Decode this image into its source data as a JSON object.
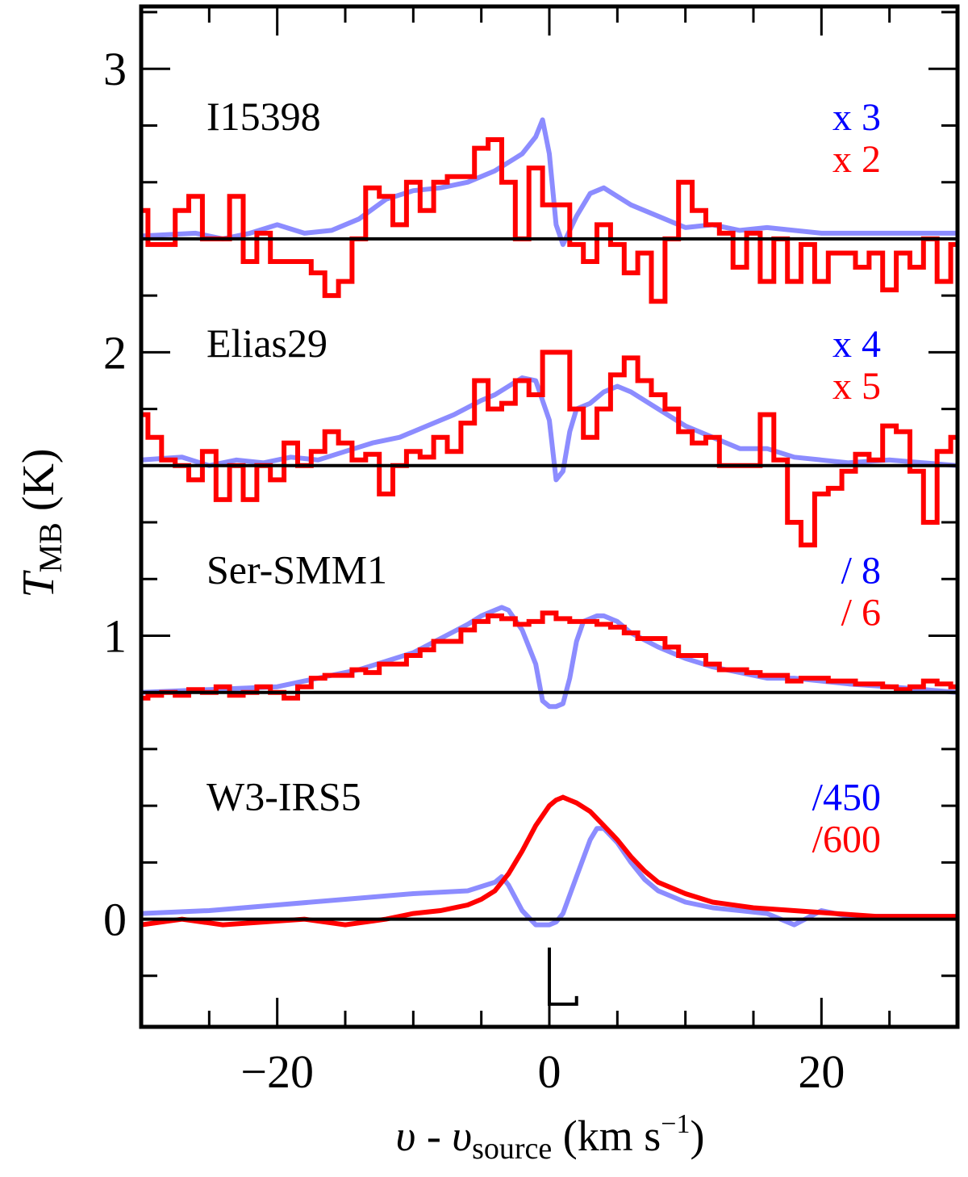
{
  "chart_data": {
    "type": "line",
    "title": "",
    "xlabel": {
      "main": "υ - υ",
      "sub": "source",
      "units": " (km s",
      "sup": "−1",
      "close": ")"
    },
    "ylabel": {
      "main": "T",
      "sub": "MB",
      "units": " (K)"
    },
    "xlim": [
      -30,
      30
    ],
    "ylim": [
      -0.38,
      3.22
    ],
    "x_ticks": [
      -20,
      0,
      20
    ],
    "x_tick_labels": [
      "−20",
      "0",
      "20"
    ],
    "y_ticks": [
      0,
      1,
      2,
      3
    ],
    "y_tick_labels": [
      "0",
      "1",
      "2",
      "3"
    ],
    "x_minor_step": 5,
    "y_minor_step": 0.2,
    "grid": false,
    "marker": {
      "x": 0,
      "y_top": -0.1,
      "y_bottom": -0.3,
      "x_right": 2
    },
    "colors": {
      "blue": "#8c8cff",
      "red": "#ff0000",
      "blue_label": "#0000ff",
      "red_label": "#ff0000",
      "baseline": "#000000"
    },
    "panels": [
      {
        "source": "I15398",
        "offset": 2.4,
        "blue_scale": "x 3",
        "red_scale": "x 2",
        "blue": {
          "x": [
            -30,
            -26,
            -24,
            -22,
            -20,
            -18,
            -16,
            -14,
            -12,
            -10,
            -8,
            -6,
            -4,
            -2,
            -1,
            -0.5,
            0,
            0.5,
            1,
            2,
            3,
            4,
            6,
            8,
            10,
            12,
            14,
            16,
            20,
            25,
            30
          ],
          "y": [
            2.41,
            2.42,
            2.4,
            2.42,
            2.45,
            2.42,
            2.43,
            2.47,
            2.54,
            2.57,
            2.58,
            2.6,
            2.64,
            2.7,
            2.76,
            2.82,
            2.7,
            2.45,
            2.38,
            2.48,
            2.56,
            2.58,
            2.52,
            2.48,
            2.44,
            2.45,
            2.43,
            2.44,
            2.42,
            2.42,
            2.42
          ]
        },
        "red": {
          "x": [
            -30,
            -29,
            -28,
            -27,
            -26,
            -25,
            -24,
            -23,
            -22,
            -21,
            -20,
            -19,
            -18,
            -17,
            -16,
            -15,
            -14,
            -13,
            -12,
            -11,
            -10,
            -9,
            -8,
            -7,
            -6,
            -5,
            -4,
            -3,
            -2,
            -1,
            0,
            1,
            2,
            3,
            4,
            5,
            6,
            7,
            8,
            9,
            10,
            11,
            12,
            13,
            14,
            15,
            16,
            17,
            18,
            19,
            20,
            21,
            22,
            23,
            24,
            25,
            26,
            27,
            28,
            29,
            30
          ],
          "y": [
            2.5,
            2.38,
            2.38,
            2.5,
            2.55,
            2.4,
            2.4,
            2.55,
            2.32,
            2.42,
            2.32,
            2.32,
            2.32,
            2.28,
            2.2,
            2.25,
            2.4,
            2.58,
            2.55,
            2.45,
            2.6,
            2.5,
            2.6,
            2.62,
            2.62,
            2.72,
            2.75,
            2.6,
            2.4,
            2.65,
            2.52,
            2.52,
            2.38,
            2.32,
            2.45,
            2.38,
            2.28,
            2.35,
            2.18,
            2.4,
            2.6,
            2.5,
            2.45,
            2.42,
            2.3,
            2.42,
            2.25,
            2.4,
            2.25,
            2.38,
            2.25,
            2.35,
            2.35,
            2.3,
            2.35,
            2.22,
            2.35,
            2.3,
            2.4,
            2.25,
            2.38
          ]
        }
      },
      {
        "source": "Elias29",
        "offset": 1.6,
        "blue_scale": "x 4",
        "red_scale": "x 5",
        "blue": {
          "x": [
            -30,
            -27,
            -25,
            -23,
            -21,
            -19,
            -17,
            -15,
            -13,
            -11,
            -9,
            -7,
            -5,
            -4,
            -3,
            -2,
            -1,
            0,
            0.5,
            1,
            1.5,
            2,
            3,
            4,
            5,
            6,
            8,
            10,
            12,
            14,
            16,
            18,
            20,
            22,
            25,
            30
          ],
          "y": [
            1.62,
            1.63,
            1.6,
            1.62,
            1.61,
            1.63,
            1.62,
            1.65,
            1.68,
            1.7,
            1.74,
            1.78,
            1.83,
            1.85,
            1.88,
            1.91,
            1.9,
            1.76,
            1.55,
            1.58,
            1.72,
            1.8,
            1.82,
            1.86,
            1.88,
            1.86,
            1.8,
            1.74,
            1.7,
            1.66,
            1.66,
            1.63,
            1.62,
            1.61,
            1.62,
            1.6
          ]
        },
        "red": {
          "x": [
            -30,
            -29,
            -28,
            -27,
            -26,
            -25,
            -24,
            -23,
            -22,
            -21,
            -20,
            -19,
            -18,
            -17,
            -16,
            -15,
            -14,
            -13,
            -12,
            -11,
            -10,
            -9,
            -8,
            -7,
            -6,
            -5,
            -4,
            -3,
            -2,
            -1,
            0,
            1,
            2,
            3,
            4,
            5,
            6,
            7,
            8,
            9,
            10,
            11,
            12,
            13,
            14,
            15,
            16,
            17,
            18,
            19,
            20,
            21,
            22,
            23,
            24,
            25,
            26,
            27,
            28,
            29,
            30
          ],
          "y": [
            1.78,
            1.7,
            1.62,
            1.6,
            1.55,
            1.65,
            1.48,
            1.6,
            1.48,
            1.6,
            1.55,
            1.68,
            1.6,
            1.65,
            1.72,
            1.68,
            1.62,
            1.64,
            1.5,
            1.6,
            1.65,
            1.63,
            1.7,
            1.65,
            1.75,
            1.9,
            1.8,
            1.82,
            1.9,
            1.85,
            2.0,
            2.0,
            1.8,
            1.7,
            1.8,
            1.92,
            1.98,
            1.9,
            1.85,
            1.8,
            1.72,
            1.68,
            1.7,
            1.6,
            1.6,
            1.6,
            1.78,
            1.62,
            1.4,
            1.32,
            1.5,
            1.52,
            1.58,
            1.64,
            1.62,
            1.74,
            1.72,
            1.58,
            1.4,
            1.65,
            1.7
          ]
        }
      },
      {
        "source": "Ser-SMM1",
        "offset": 0.8,
        "blue_scale": "/ 8",
        "red_scale": "/ 6",
        "blue": {
          "x": [
            -30,
            -25,
            -20,
            -18,
            -16,
            -14,
            -12,
            -10,
            -8,
            -6,
            -5,
            -4,
            -3.5,
            -3,
            -2,
            -1,
            -0.5,
            0,
            0.5,
            1,
            1.5,
            2,
            2.5,
            3,
            3.5,
            4,
            5,
            6,
            8,
            10,
            12,
            14,
            16,
            18,
            20,
            22,
            25,
            30
          ],
          "y": [
            0.8,
            0.81,
            0.82,
            0.84,
            0.86,
            0.88,
            0.91,
            0.94,
            0.99,
            1.04,
            1.07,
            1.09,
            1.1,
            1.09,
            1.02,
            0.9,
            0.77,
            0.75,
            0.75,
            0.76,
            0.85,
            0.98,
            1.05,
            1.06,
            1.07,
            1.07,
            1.05,
            1.01,
            0.96,
            0.92,
            0.89,
            0.87,
            0.85,
            0.85,
            0.84,
            0.83,
            0.82,
            0.8
          ]
        },
        "red": {
          "x": [
            -30,
            -29,
            -28,
            -27,
            -26,
            -25,
            -24,
            -23,
            -22,
            -21,
            -20,
            -19,
            -18,
            -17,
            -16,
            -15,
            -14,
            -13,
            -12,
            -11,
            -10,
            -9,
            -8,
            -7,
            -6,
            -5,
            -4,
            -3,
            -2,
            -1,
            0,
            1,
            2,
            3,
            4,
            5,
            6,
            7,
            8,
            9,
            10,
            11,
            12,
            13,
            14,
            15,
            16,
            17,
            18,
            19,
            20,
            21,
            22,
            23,
            24,
            25,
            26,
            27,
            28,
            29,
            30
          ],
          "y": [
            0.78,
            0.79,
            0.8,
            0.79,
            0.81,
            0.8,
            0.82,
            0.79,
            0.8,
            0.82,
            0.8,
            0.78,
            0.82,
            0.85,
            0.86,
            0.86,
            0.88,
            0.87,
            0.9,
            0.9,
            0.93,
            0.95,
            0.98,
            0.98,
            1.02,
            1.05,
            1.07,
            1.06,
            1.04,
            1.05,
            1.08,
            1.06,
            1.05,
            1.05,
            1.04,
            1.03,
            1.01,
            0.99,
            0.99,
            0.96,
            0.93,
            0.93,
            0.9,
            0.88,
            0.88,
            0.87,
            0.86,
            0.86,
            0.84,
            0.85,
            0.85,
            0.84,
            0.84,
            0.83,
            0.83,
            0.82,
            0.81,
            0.82,
            0.84,
            0.83,
            0.82
          ]
        }
      },
      {
        "source": "W3-IRS5",
        "offset": 0.0,
        "blue_scale": "/450",
        "red_scale": "/600",
        "blue": {
          "x": [
            -30,
            -25,
            -20,
            -15,
            -10,
            -6,
            -4,
            -3.5,
            -3,
            -2,
            -1,
            0,
            0.5,
            1,
            2,
            3,
            3.5,
            4,
            5,
            6,
            7,
            8,
            10,
            12,
            14,
            16,
            17,
            18,
            20,
            22,
            25,
            30
          ],
          "y": [
            0.02,
            0.03,
            0.05,
            0.07,
            0.09,
            0.1,
            0.13,
            0.15,
            0.12,
            0.03,
            -0.02,
            -0.02,
            -0.01,
            0.02,
            0.15,
            0.28,
            0.32,
            0.32,
            0.27,
            0.2,
            0.14,
            0.1,
            0.06,
            0.04,
            0.03,
            0.02,
            0.0,
            -0.02,
            0.03,
            0.01,
            0.01,
            0.01
          ]
        },
        "red": {
          "x": [
            -30,
            -27,
            -24,
            -21,
            -18,
            -15,
            -12,
            -10,
            -8,
            -6,
            -5,
            -4,
            -3,
            -2,
            -1,
            0,
            0.5,
            1,
            1.5,
            2,
            3,
            4,
            5,
            6,
            7,
            8,
            10,
            12,
            15,
            18,
            21,
            24,
            27,
            30
          ],
          "y": [
            -0.02,
            0.0,
            -0.02,
            -0.01,
            0.0,
            -0.02,
            0.0,
            0.02,
            0.03,
            0.05,
            0.07,
            0.1,
            0.16,
            0.24,
            0.33,
            0.4,
            0.42,
            0.43,
            0.42,
            0.41,
            0.38,
            0.33,
            0.28,
            0.22,
            0.17,
            0.13,
            0.09,
            0.06,
            0.04,
            0.03,
            0.02,
            0.01,
            0.01,
            0.01
          ]
        }
      }
    ]
  }
}
